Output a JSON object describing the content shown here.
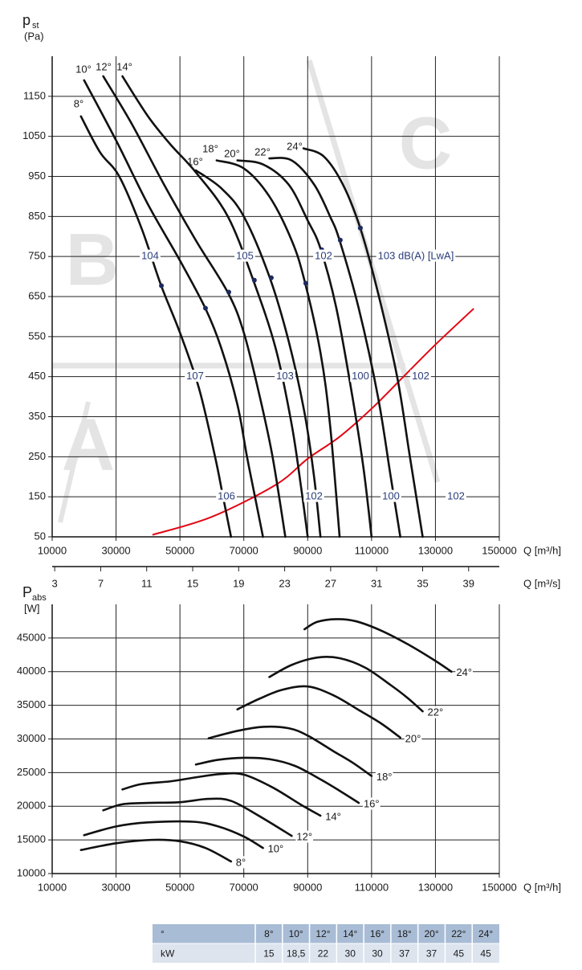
{
  "chart_data": [
    {
      "type": "line",
      "y_label": "p",
      "y_label_sub": "st",
      "y_unit": "(Pa)",
      "x_label": "Q [m³/h]",
      "xlim": [
        10000,
        150000
      ],
      "xticks": [
        10000,
        30000,
        50000,
        70000,
        90000,
        110000,
        130000,
        150000
      ],
      "ylim": [
        50,
        1250
      ],
      "yticks": [
        50,
        150,
        250,
        350,
        450,
        550,
        650,
        750,
        850,
        950,
        1050,
        1150
      ],
      "grid": true,
      "x2_label": "Q [m³/s]",
      "x2lim": [
        2.78,
        41.67
      ],
      "x2ticks": [
        3,
        7,
        11,
        15,
        19,
        23,
        27,
        31,
        35,
        39
      ],
      "zones": [
        "A",
        "B",
        "C"
      ],
      "series": [
        {
          "name": "8°",
          "color": "#111111",
          "x": [
            19000,
            25000,
            31000,
            38000,
            44000,
            50000,
            56000,
            61000,
            63500,
            66000
          ],
          "values": [
            1100,
            1010,
            950,
            820,
            680,
            560,
            420,
            250,
            150,
            50
          ],
          "dot_x": 44200,
          "dot_y": 677
        },
        {
          "name": "10°",
          "color": "#111111",
          "x": [
            20000,
            30000,
            40000,
            50000,
            58000,
            63000,
            68000,
            71000,
            74000,
            76000
          ],
          "values": [
            1190,
            1040,
            880,
            740,
            620,
            520,
            380,
            250,
            130,
            50
          ],
          "dot_x": 58000,
          "dot_y": 621
        },
        {
          "name": "12°",
          "color": "#111111",
          "x": [
            26000,
            35000,
            45000,
            55000,
            65000,
            70000,
            75000,
            79000,
            83000
          ],
          "values": [
            1200,
            1080,
            930,
            790,
            660,
            560,
            400,
            250,
            50
          ],
          "dot_x": 65300,
          "dot_y": 661
        },
        {
          "name": "14°",
          "color": "#111111",
          "x": [
            32000,
            40000,
            47000,
            55000,
            65000,
            73000,
            80000,
            85000,
            88000,
            90000
          ],
          "values": [
            1200,
            1100,
            1030,
            960,
            850,
            690,
            520,
            330,
            170,
            50
          ],
          "dot_x": 73300,
          "dot_y": 691
        },
        {
          "name": "16°",
          "color": "#111111",
          "x": [
            55000,
            63000,
            70000,
            78000,
            84000,
            89000,
            92000,
            94000
          ],
          "values": [
            965,
            920,
            850,
            700,
            540,
            360,
            200,
            50
          ],
          "dot_x": 78600,
          "dot_y": 697
        },
        {
          "name": "18°",
          "color": "#111111",
          "x": [
            61500,
            70000,
            78000,
            85000,
            89000,
            94000,
            97000,
            100000
          ],
          "values": [
            990,
            970,
            900,
            790,
            690,
            510,
            330,
            50
          ],
          "dot_x": 89400,
          "dot_y": 683
        },
        {
          "name": "20°",
          "color": "#111111",
          "x": [
            68000,
            76000,
            84000,
            90000,
            94000,
            99000,
            104000,
            107500,
            110000
          ],
          "values": [
            990,
            980,
            930,
            840,
            770,
            620,
            400,
            220,
            50
          ],
          "dot_x": 94400,
          "dot_y": 767
        },
        {
          "name": "22°",
          "color": "#111111",
          "x": [
            78000,
            85000,
            92000,
            97000,
            100000,
            106000,
            112000,
            116000,
            119000
          ],
          "values": [
            995,
            990,
            930,
            850,
            790,
            620,
            400,
            200,
            50
          ],
          "dot_x": 100200,
          "dot_y": 791
        },
        {
          "name": "24°",
          "color": "#111111",
          "x": [
            88700,
            95000,
            101000,
            106500,
            112000,
            118000,
            122000,
            126000
          ],
          "values": [
            1020,
            1000,
            930,
            820,
            660,
            450,
            250,
            50
          ],
          "dot_x": 106500,
          "dot_y": 821
        }
      ],
      "system_curve": {
        "color": "#e30613",
        "x": [
          41400,
          60000,
          80000,
          90000,
          100000,
          110000,
          120000,
          130000,
          142000
        ],
        "values": [
          55,
          100,
          180,
          245,
          300,
          370,
          450,
          530,
          620
        ]
      },
      "sound_labels": [
        [
          "104",
          "105",
          "102",
          "103 dB(A) [LwA]"
        ],
        [
          "107",
          "103",
          "100",
          "102"
        ],
        [
          "106",
          "102",
          "100",
          "102"
        ]
      ]
    },
    {
      "type": "line",
      "y_label": "P",
      "y_label_sub": "abs",
      "y_unit": "[W]",
      "x_label": "Q [m³/h]",
      "xlim": [
        10000,
        150000
      ],
      "xticks": [
        10000,
        30000,
        50000,
        70000,
        90000,
        110000,
        130000,
        150000
      ],
      "ylim": [
        10000,
        50000
      ],
      "yticks": [
        10000,
        15000,
        20000,
        25000,
        30000,
        35000,
        40000,
        45000
      ],
      "grid": true,
      "series": [
        {
          "name": "8°",
          "color": "#111111",
          "x": [
            19000,
            30000,
            41000,
            50000,
            58000,
            66000
          ],
          "values": [
            13500,
            14500,
            15000,
            14800,
            13800,
            11800
          ]
        },
        {
          "name": "10°",
          "color": "#111111",
          "x": [
            20000,
            30000,
            40000,
            54000,
            62000,
            70000,
            76000
          ],
          "values": [
            15700,
            17000,
            17600,
            17700,
            17000,
            15500,
            13800
          ]
        },
        {
          "name": "12°",
          "color": "#111111",
          "x": [
            26000,
            32000,
            40000,
            50000,
            59000,
            66000,
            75000,
            85000
          ],
          "values": [
            19400,
            20300,
            20500,
            20600,
            21100,
            20800,
            18500,
            15600
          ]
        },
        {
          "name": "14°",
          "color": "#111111",
          "x": [
            32000,
            38000,
            47000,
            55000,
            63000,
            70000,
            79000,
            88000,
            94000
          ],
          "values": [
            22500,
            23300,
            23700,
            24300,
            24800,
            24700,
            22800,
            20200,
            18600
          ]
        },
        {
          "name": "16°",
          "color": "#111111",
          "x": [
            55000,
            62000,
            70000,
            78000,
            86000,
            94000,
            100000,
            106000
          ],
          "values": [
            26200,
            26900,
            27200,
            27000,
            26000,
            24000,
            22300,
            20500
          ]
        },
        {
          "name": "18°",
          "color": "#111111",
          "x": [
            59000,
            68000,
            76000,
            84000,
            90000,
            98000,
            104000,
            110000
          ],
          "values": [
            30100,
            31200,
            31800,
            31600,
            30500,
            28200,
            26500,
            24500
          ]
        },
        {
          "name": "20°",
          "color": "#111111",
          "x": [
            68000,
            75000,
            82000,
            90000,
            98000,
            106000,
            113000,
            119000
          ],
          "values": [
            34400,
            36000,
            37300,
            37800,
            36500,
            34300,
            32300,
            30200
          ]
        },
        {
          "name": "22°",
          "color": "#111111",
          "x": [
            78000,
            85000,
            93000,
            100000,
            108000,
            116000,
            121000,
            126000
          ],
          "values": [
            39200,
            41000,
            42100,
            42000,
            40600,
            38000,
            36200,
            34100
          ]
        },
        {
          "name": "24°",
          "color": "#111111",
          "x": [
            89000,
            93000,
            99000,
            105000,
            113000,
            122000,
            130000,
            135000
          ],
          "values": [
            46300,
            47400,
            47800,
            47500,
            46100,
            43900,
            41600,
            40000
          ]
        }
      ]
    }
  ],
  "table": {
    "header": [
      "°",
      "8°",
      "10°",
      "12°",
      "14°",
      "16°",
      "18°",
      "20°",
      "22°",
      "24°"
    ],
    "rows": [
      [
        "kW",
        "15",
        "18,5",
        "22",
        "30",
        "30",
        "37",
        "37",
        "45",
        "45"
      ]
    ]
  }
}
